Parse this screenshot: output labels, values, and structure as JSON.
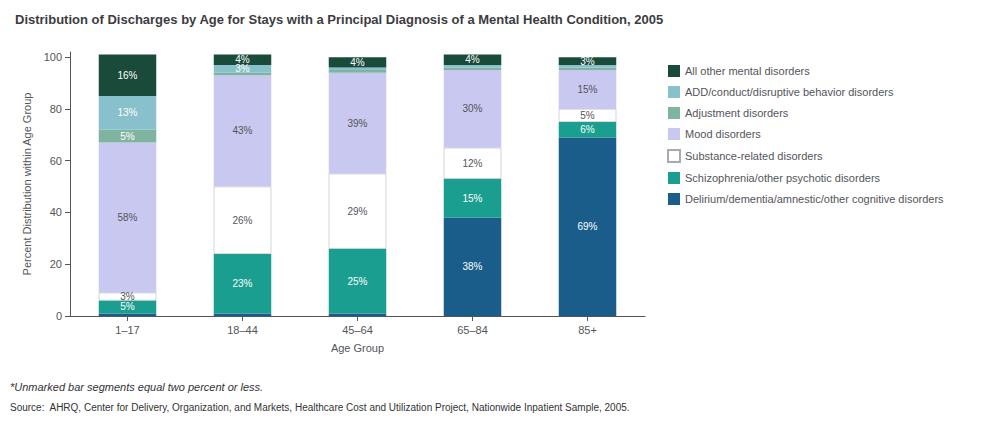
{
  "chart_data": {
    "type": "bar",
    "title": "Distribution of Discharges by Age for Stays with a Principal Diagnosis of a Mental Health Condition, 2005",
    "xlabel": "Age Group",
    "ylabel": "Percent Distribution within Age Group",
    "categories": [
      "1–17",
      "18–44",
      "45–64",
      "65–84",
      "85+"
    ],
    "series": [
      {
        "name": "Delirium/dementia/amnestic/other cognitive disorders",
        "color": "#1a5c8a",
        "values": [
          1,
          1,
          1,
          38,
          69
        ],
        "value_labels": [
          null,
          null,
          null,
          "38%",
          "69%"
        ]
      },
      {
        "name": "Schizophrenia/other psychotic disorders",
        "color": "#1a9e8f",
        "values": [
          5,
          23,
          25,
          15,
          6
        ],
        "value_labels": [
          "5%",
          "23%",
          "25%",
          "15%",
          "6%"
        ]
      },
      {
        "name": "Substance-related disorders",
        "color": "#ffffff",
        "values": [
          3,
          26,
          29,
          12,
          5
        ],
        "value_labels": [
          "3%",
          "26%",
          "29%",
          "12%",
          "5%"
        ]
      },
      {
        "name": "Mood disorders",
        "color": "#c8c8f0",
        "values": [
          58,
          43,
          39,
          30,
          15
        ],
        "value_labels": [
          "58%",
          "43%",
          "39%",
          "30%",
          "15%"
        ]
      },
      {
        "name": "Adjustment disorders",
        "color": "#7fb5a0",
        "values": [
          5,
          1,
          1,
          1,
          1
        ],
        "value_labels": [
          "5%",
          null,
          null,
          null,
          null
        ]
      },
      {
        "name": "ADD/conduct/disruptive behavior disorders",
        "color": "#88c0cc",
        "values": [
          13,
          3,
          1,
          1,
          1
        ],
        "value_labels": [
          "13%",
          "3%",
          null,
          null,
          null
        ]
      },
      {
        "name": "All other mental disorders",
        "color": "#1a4a3a",
        "values": [
          16,
          4,
          4,
          4,
          3
        ],
        "value_labels": [
          "16%",
          "4%",
          "4%",
          "4%",
          "3%"
        ]
      }
    ],
    "stacked": true,
    "data_labels": true,
    "ylim": [
      0,
      102
    ],
    "yticks": [
      0,
      20,
      40,
      60,
      80,
      100
    ],
    "grid": false,
    "legend": "right",
    "annotations": [
      "*Unmarked bar segments equal two percent or less.",
      "Source:  AHRQ, Center for Delivery, Organization, and Markets, Healthcare Cost and Utilization Project, Nationwide Inpatient Sample, 2005."
    ]
  }
}
